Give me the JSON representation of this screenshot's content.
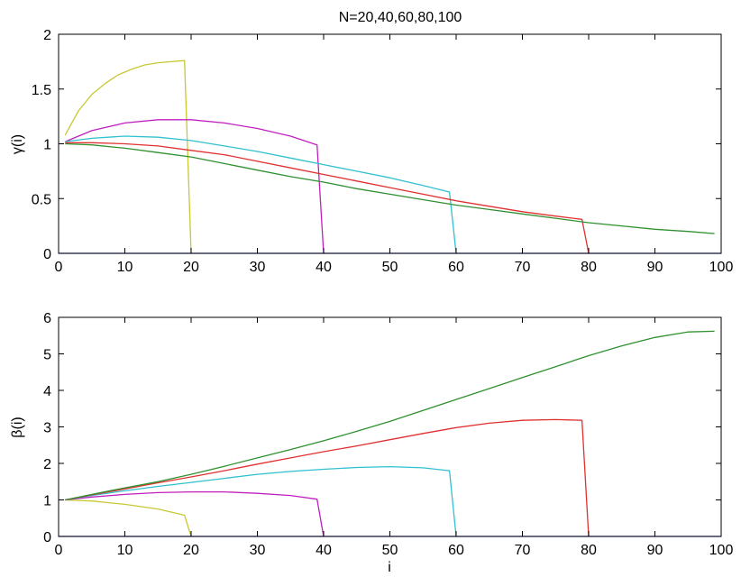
{
  "figure": {
    "title": "N=20,40,60,80,100"
  },
  "chart_data": [
    {
      "type": "line",
      "title": "N=20,40,60,80,100",
      "xlabel": "",
      "ylabel": "γ(i)",
      "xlim": [
        0,
        100
      ],
      "ylim": [
        0,
        2
      ],
      "xticks": [
        0,
        10,
        20,
        30,
        40,
        50,
        60,
        70,
        80,
        90,
        100
      ],
      "yticks": [
        0,
        0.5,
        1,
        1.5,
        2
      ],
      "ytick_labels": [
        "0",
        "0.5",
        "1",
        "1.5",
        "2"
      ],
      "grid": false,
      "baseline": {
        "y": 0,
        "color": "#5555ee"
      },
      "series": [
        {
          "color": "#c8c832",
          "x": [
            1,
            3,
            5,
            7,
            9,
            11,
            13,
            15,
            17,
            19,
            20
          ],
          "y": [
            1.08,
            1.3,
            1.45,
            1.55,
            1.63,
            1.68,
            1.72,
            1.74,
            1.75,
            1.76,
            0
          ]
        },
        {
          "color": "#c020c0",
          "x": [
            1,
            5,
            10,
            15,
            20,
            25,
            30,
            35,
            39,
            40
          ],
          "y": [
            1.02,
            1.12,
            1.19,
            1.22,
            1.22,
            1.19,
            1.14,
            1.07,
            0.99,
            0
          ]
        },
        {
          "color": "#30c0d0",
          "x": [
            1,
            5,
            10,
            15,
            20,
            25,
            30,
            35,
            40,
            45,
            50,
            55,
            59,
            60
          ],
          "y": [
            1.02,
            1.05,
            1.07,
            1.06,
            1.03,
            0.98,
            0.93,
            0.87,
            0.81,
            0.75,
            0.69,
            0.62,
            0.56,
            0
          ]
        },
        {
          "color": "#e03030",
          "x": [
            1,
            5,
            10,
            15,
            20,
            25,
            30,
            35,
            40,
            45,
            50,
            55,
            60,
            65,
            70,
            75,
            79,
            80
          ],
          "y": [
            1.01,
            1.01,
            1.0,
            0.98,
            0.94,
            0.9,
            0.84,
            0.78,
            0.72,
            0.66,
            0.6,
            0.54,
            0.48,
            0.43,
            0.38,
            0.34,
            0.31,
            0
          ]
        },
        {
          "color": "#309030",
          "x": [
            1,
            5,
            10,
            15,
            20,
            25,
            30,
            35,
            40,
            45,
            50,
            55,
            60,
            65,
            70,
            75,
            80,
            85,
            90,
            95,
            99
          ],
          "y": [
            1.0,
            0.99,
            0.96,
            0.92,
            0.88,
            0.82,
            0.76,
            0.7,
            0.65,
            0.59,
            0.54,
            0.49,
            0.44,
            0.4,
            0.36,
            0.32,
            0.28,
            0.25,
            0.22,
            0.2,
            0.18
          ]
        }
      ]
    },
    {
      "type": "line",
      "title": "",
      "xlabel": "i",
      "ylabel": "β(i)",
      "xlim": [
        0,
        100
      ],
      "ylim": [
        0,
        6
      ],
      "xticks": [
        0,
        10,
        20,
        30,
        40,
        50,
        60,
        70,
        80,
        90,
        100
      ],
      "yticks": [
        0,
        1,
        2,
        3,
        4,
        5,
        6
      ],
      "ytick_labels": [
        "0",
        "1",
        "2",
        "3",
        "4",
        "5",
        "6"
      ],
      "grid": false,
      "baseline": {
        "y": 0,
        "color": "#5555ee"
      },
      "series": [
        {
          "color": "#c8c832",
          "x": [
            1,
            5,
            10,
            15,
            19,
            20
          ],
          "y": [
            1.0,
            0.97,
            0.88,
            0.75,
            0.58,
            0
          ]
        },
        {
          "color": "#c020c0",
          "x": [
            1,
            5,
            10,
            15,
            20,
            25,
            30,
            35,
            39,
            40
          ],
          "y": [
            1.0,
            1.08,
            1.15,
            1.2,
            1.22,
            1.22,
            1.18,
            1.12,
            1.02,
            0
          ]
        },
        {
          "color": "#30c0d0",
          "x": [
            1,
            5,
            10,
            15,
            20,
            25,
            30,
            35,
            40,
            45,
            50,
            55,
            59,
            60
          ],
          "y": [
            1.0,
            1.12,
            1.25,
            1.37,
            1.48,
            1.59,
            1.7,
            1.78,
            1.84,
            1.89,
            1.91,
            1.88,
            1.8,
            0
          ]
        },
        {
          "color": "#e03030",
          "x": [
            1,
            5,
            10,
            15,
            20,
            25,
            30,
            35,
            40,
            45,
            50,
            55,
            60,
            65,
            70,
            75,
            79,
            80
          ],
          "y": [
            1.0,
            1.14,
            1.3,
            1.47,
            1.63,
            1.8,
            1.98,
            2.15,
            2.32,
            2.48,
            2.65,
            2.82,
            2.98,
            3.1,
            3.18,
            3.2,
            3.18,
            0
          ]
        },
        {
          "color": "#309030",
          "x": [
            1,
            5,
            10,
            15,
            20,
            25,
            30,
            35,
            40,
            45,
            50,
            55,
            60,
            65,
            70,
            75,
            80,
            85,
            90,
            95,
            99
          ],
          "y": [
            1.0,
            1.15,
            1.33,
            1.5,
            1.7,
            1.92,
            2.15,
            2.38,
            2.62,
            2.88,
            3.15,
            3.45,
            3.75,
            4.05,
            4.35,
            4.65,
            4.95,
            5.22,
            5.45,
            5.6,
            5.62
          ]
        }
      ]
    }
  ]
}
